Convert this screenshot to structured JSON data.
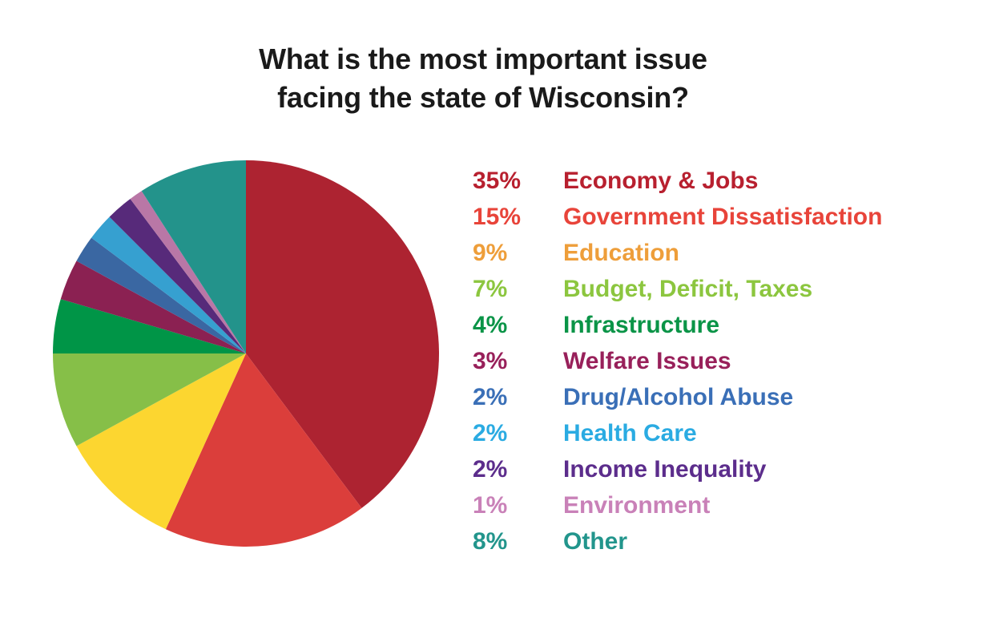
{
  "chart_data": {
    "type": "pie",
    "title": "What is the most important issue facing the state of Wisconsin?",
    "title_lines": [
      "What is the most important issue",
      "facing the state of Wisconsin?"
    ],
    "start_angle": "top",
    "direction": "clockwise",
    "legend_position": "right",
    "slices": [
      {
        "label": "Economy & Jobs",
        "value": 35,
        "pct_label": "35%",
        "slice_color": "#AD2331",
        "text_color": "#B8202F"
      },
      {
        "label": "Government Dissatisfaction",
        "value": 15,
        "pct_label": "15%",
        "slice_color": "#DB3E3B",
        "text_color": "#E8443A"
      },
      {
        "label": "Education",
        "value": 9,
        "pct_label": "9%",
        "slice_color": "#FCD630",
        "text_color": "#EE9E3A"
      },
      {
        "label": "Budget, Deficit, Taxes",
        "value": 7,
        "pct_label": "7%",
        "slice_color": "#86BF48",
        "text_color": "#8CC63F"
      },
      {
        "label": "Infrastructure",
        "value": 4,
        "pct_label": "4%",
        "slice_color": "#009547",
        "text_color": "#0A9447"
      },
      {
        "label": "Welfare Issues",
        "value": 3,
        "pct_label": "3%",
        "slice_color": "#8B2152",
        "text_color": "#98205A"
      },
      {
        "label": "Drug/Alcohol Abuse",
        "value": 2,
        "pct_label": "2%",
        "slice_color": "#3A67A2",
        "text_color": "#3A6FB7"
      },
      {
        "label": "Health Care",
        "value": 2,
        "pct_label": "2%",
        "slice_color": "#36A0D0",
        "text_color": "#2AABE2"
      },
      {
        "label": "Income Inequality",
        "value": 2,
        "pct_label": "2%",
        "slice_color": "#572A7A",
        "text_color": "#5C2D8C"
      },
      {
        "label": "Environment",
        "value": 1,
        "pct_label": "1%",
        "slice_color": "#B977A6",
        "text_color": "#C981B8"
      },
      {
        "label": "Other",
        "value": 8,
        "pct_label": "8%",
        "slice_color": "#23938B",
        "text_color": "#22958C"
      }
    ]
  }
}
